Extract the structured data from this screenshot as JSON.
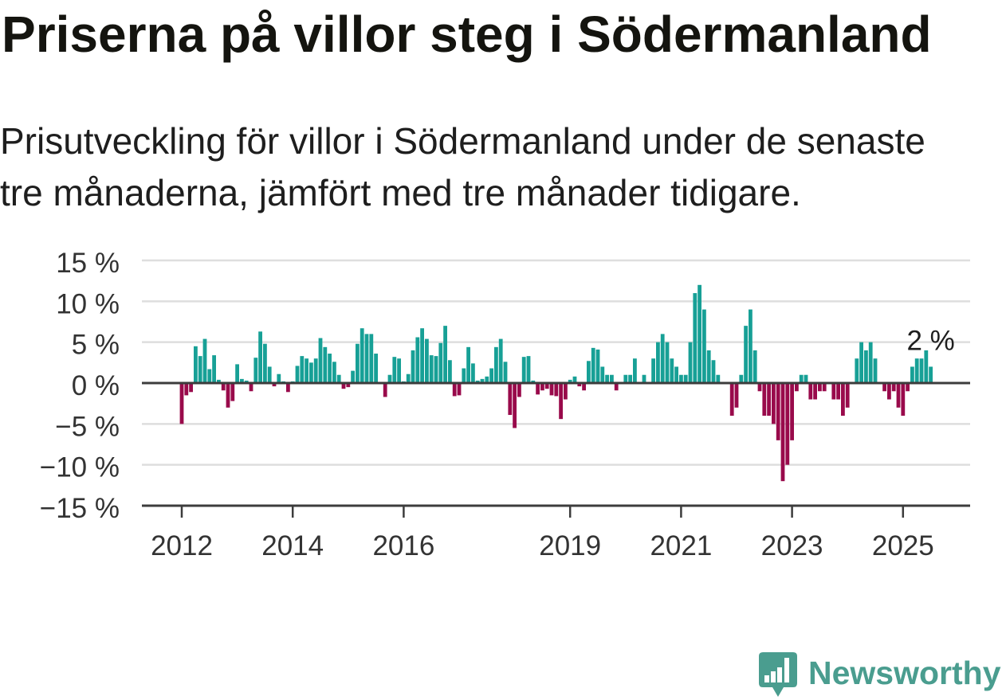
{
  "title": "Priserna på villor steg i Södermanland",
  "subtitle": "Prisutveckling för villor i Södermanland under de senaste tre månaderna, jämfört med tre månader tidigare.",
  "colors": {
    "positive": "#17a096",
    "negative": "#990a4b",
    "brand": "#4a9d8f"
  },
  "chart_data": {
    "type": "bar",
    "x": [
      "2012-01",
      "2012-02",
      "2012-03",
      "2012-04",
      "2012-05",
      "2012-06",
      "2012-07",
      "2012-08",
      "2012-09",
      "2012-10",
      "2012-11",
      "2012-12",
      "2013-01",
      "2013-02",
      "2013-03",
      "2013-04",
      "2013-05",
      "2013-06",
      "2013-07",
      "2013-08",
      "2013-09",
      "2013-10",
      "2013-11",
      "2013-12",
      "2014-01",
      "2014-02",
      "2014-03",
      "2014-04",
      "2014-05",
      "2014-06",
      "2014-07",
      "2014-08",
      "2014-09",
      "2014-10",
      "2014-11",
      "2014-12",
      "2015-01",
      "2015-02",
      "2015-03",
      "2015-04",
      "2015-05",
      "2015-06",
      "2015-07",
      "2015-08",
      "2015-09",
      "2015-10",
      "2015-11",
      "2015-12",
      "2016-01",
      "2016-02",
      "2016-03",
      "2016-04",
      "2016-05",
      "2016-06",
      "2016-07",
      "2016-08",
      "2016-09",
      "2016-10",
      "2016-11",
      "2016-12",
      "2017-01",
      "2017-02",
      "2017-03",
      "2017-04",
      "2017-05",
      "2017-06",
      "2017-07",
      "2017-08",
      "2017-09",
      "2017-10",
      "2017-11",
      "2017-12",
      "2018-01",
      "2018-02",
      "2018-03",
      "2018-04",
      "2018-05",
      "2018-06",
      "2018-07",
      "2018-08",
      "2018-09",
      "2018-10",
      "2018-11",
      "2018-12",
      "2019-01",
      "2019-02",
      "2019-03",
      "2019-04",
      "2019-05",
      "2019-06",
      "2019-07",
      "2019-08",
      "2019-09",
      "2019-10",
      "2019-11",
      "2019-12",
      "2020-01",
      "2020-02",
      "2020-03",
      "2020-04",
      "2020-05",
      "2020-06",
      "2020-07",
      "2020-08",
      "2020-09",
      "2020-10",
      "2020-11",
      "2020-12",
      "2021-01",
      "2021-02",
      "2021-03",
      "2021-04",
      "2021-05",
      "2021-06",
      "2021-07",
      "2021-08",
      "2021-09",
      "2021-10",
      "2021-11",
      "2021-12",
      "2022-01",
      "2022-02",
      "2022-03",
      "2022-04",
      "2022-05",
      "2022-06",
      "2022-07",
      "2022-08",
      "2022-09",
      "2022-10",
      "2022-11",
      "2022-12",
      "2023-01",
      "2023-02",
      "2023-03",
      "2023-04",
      "2023-05",
      "2023-06",
      "2023-07",
      "2023-08",
      "2023-09",
      "2023-10",
      "2023-11",
      "2023-12",
      "2024-01",
      "2024-02",
      "2024-03",
      "2024-04",
      "2024-05",
      "2024-06",
      "2024-07",
      "2024-08",
      "2024-09",
      "2024-10",
      "2024-11",
      "2024-12",
      "2025-01",
      "2025-02",
      "2025-03",
      "2025-04",
      "2025-05",
      "2025-06",
      "2025-07"
    ],
    "values": [
      -5.0,
      -1.5,
      -1.1,
      4.5,
      3.3,
      5.4,
      1.7,
      3.4,
      0.4,
      -0.9,
      -3.0,
      -2.2,
      2.3,
      0.5,
      0.3,
      -1.0,
      3.1,
      6.3,
      4.8,
      2.0,
      -0.4,
      1.1,
      0.2,
      -1.1,
      0.2,
      2.1,
      3.3,
      3.0,
      2.5,
      3.0,
      5.5,
      4.4,
      3.6,
      2.6,
      1.0,
      -0.7,
      -0.5,
      1.5,
      4.8,
      6.7,
      6.0,
      6.0,
      3.6,
      0.1,
      -1.7,
      1.0,
      3.2,
      3.0,
      0.2,
      1.1,
      4.0,
      5.6,
      6.7,
      5.4,
      3.4,
      3.3,
      4.9,
      7.0,
      2.8,
      -1.6,
      -1.5,
      1.8,
      4.4,
      2.4,
      0.3,
      0.5,
      0.8,
      1.8,
      4.4,
      5.4,
      2.6,
      -3.9,
      -5.5,
      -1.7,
      3.2,
      3.3,
      0.3,
      -1.4,
      -0.9,
      -0.7,
      -1.5,
      -1.6,
      -4.4,
      -2.0,
      0.4,
      0.8,
      -0.4,
      -0.9,
      2.7,
      4.3,
      4.1,
      2.0,
      1.0,
      1.0,
      -0.9,
      0.1,
      1.0,
      1.0,
      3.0,
      0.1,
      1.0,
      0.1,
      3.0,
      5.0,
      6.0,
      5.0,
      3.0,
      2.0,
      1.0,
      1.0,
      5.0,
      11.0,
      12.0,
      9.0,
      4.0,
      2.8,
      1.0,
      0.1,
      0.1,
      -4.0,
      -3.0,
      1.0,
      7.0,
      9.0,
      4.0,
      -1.0,
      -4.0,
      -4.0,
      -5.0,
      -7.0,
      -12.0,
      -10.0,
      -7.0,
      -1.0,
      1.0,
      1.0,
      -2.0,
      -2.0,
      -1.0,
      -1.0,
      0.0,
      -2.0,
      -2.0,
      -4.0,
      -3.0,
      0.0,
      3.0,
      5.0,
      4.0,
      5.0,
      3.0,
      0.0,
      -1.0,
      -2.0,
      -1.0,
      -3.0,
      -4.0,
      -1.0,
      2.0,
      3.0,
      3.0,
      4.0,
      2.0
    ],
    "ylim": [
      -15,
      15
    ],
    "y_ticks": [
      15,
      10,
      5,
      0,
      -5,
      -10,
      -15
    ],
    "y_tick_labels": [
      "15 %",
      "10 %",
      "5 %",
      "0 %",
      "−5 %",
      "−10 %",
      "−15 %"
    ],
    "x_ticks": [
      "2012-01",
      "2014-01",
      "2016-01",
      "2019-01",
      "2021-01",
      "2023-01",
      "2025-01"
    ],
    "x_tick_labels": [
      "2012",
      "2014",
      "2016",
      "2019",
      "2021",
      "2023",
      "2025"
    ],
    "grid": true,
    "annotations": [
      {
        "x": "2025-07",
        "text": "2 %"
      }
    ]
  },
  "brand": {
    "name": "Newsworthy",
    "icon": "chart-bubble-icon"
  }
}
